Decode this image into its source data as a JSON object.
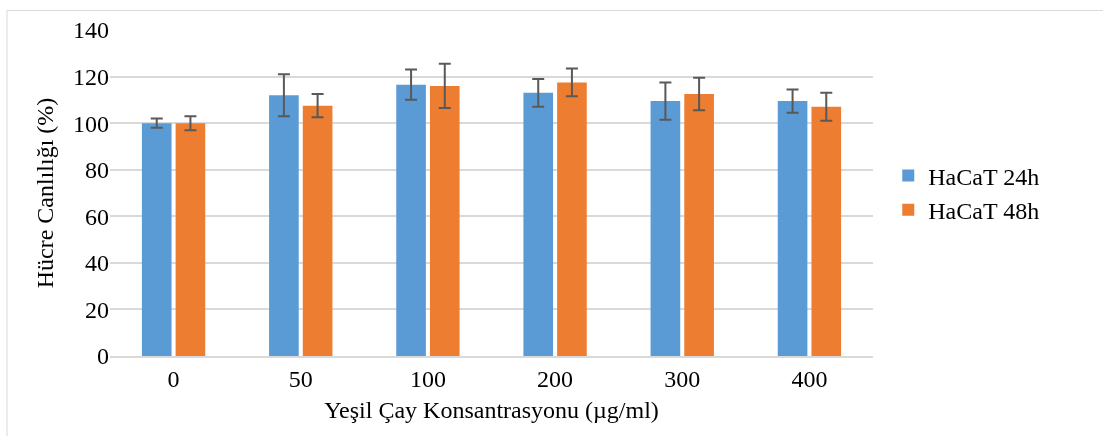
{
  "chart_data": {
    "type": "bar",
    "xlabel": "Yeşil Çay Konsantrasyonu (µg/ml)",
    "ylabel": "Hücre Canlılığı (%)",
    "categories": [
      "0",
      "50",
      "100",
      "200",
      "300",
      "400"
    ],
    "series": [
      {
        "name": "HaCaT 24h",
        "color": "#5b9bd5",
        "values": [
          100,
          112,
          116.5,
          113,
          109.5,
          109.5
        ],
        "errors": [
          2,
          9,
          6.5,
          6,
          8,
          5
        ]
      },
      {
        "name": "HaCaT 48h",
        "color": "#ed7d31",
        "values": [
          100,
          107.5,
          116,
          117.5,
          112.5,
          107
        ],
        "errors": [
          3,
          5,
          9.5,
          6,
          7,
          6
        ]
      }
    ],
    "ylim": [
      0,
      140
    ],
    "yticks": [
      0,
      20,
      40,
      60,
      80,
      100,
      120,
      140
    ],
    "grid": "y",
    "legend": "right"
  }
}
